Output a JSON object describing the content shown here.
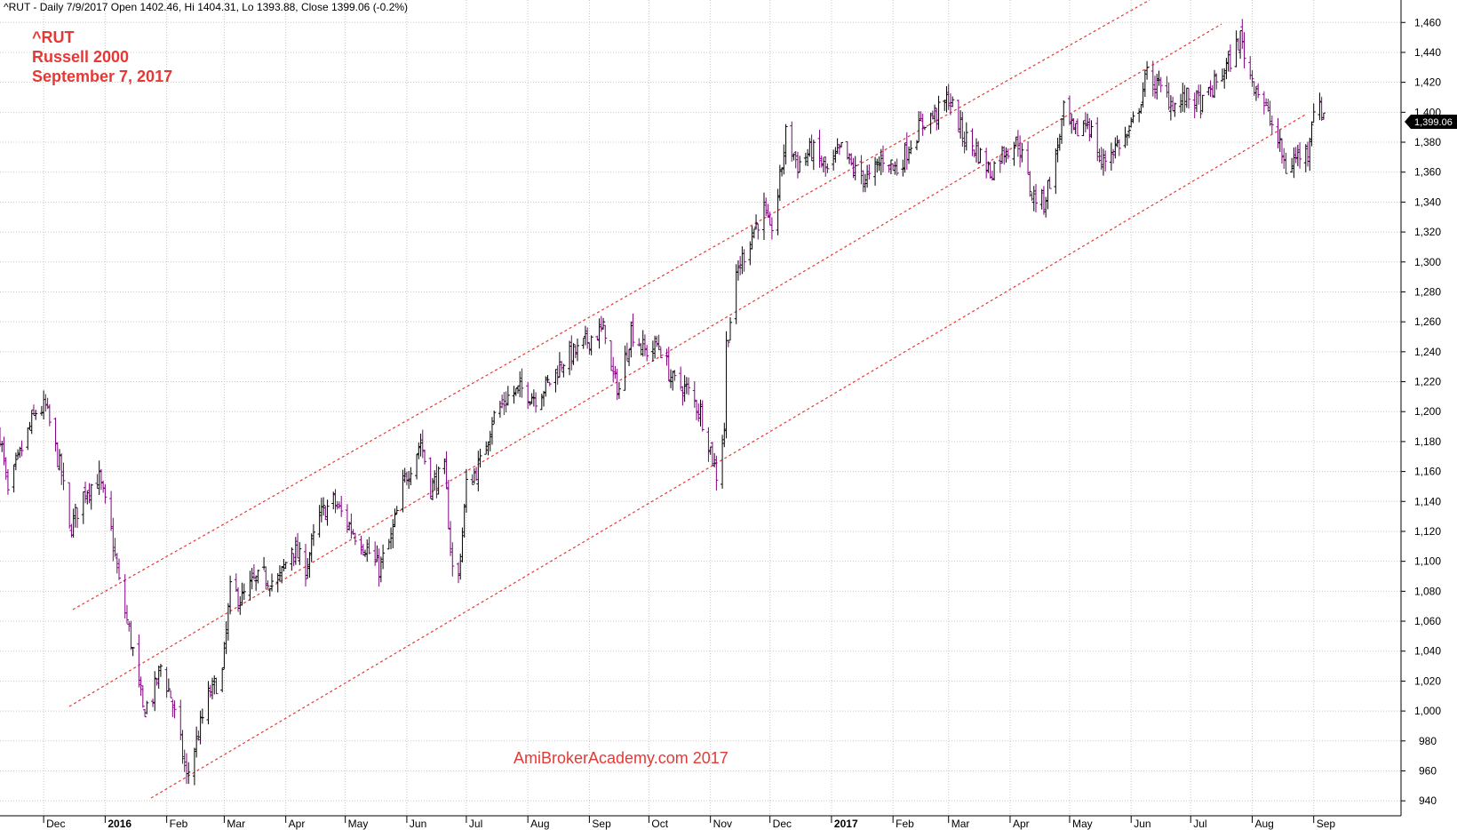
{
  "header": {
    "text": "^RUT - Daily 7/9/2017 Open 1402.46, Hi 1404.31, Lo 1393.88, Close 1399.06 (-0.2%)"
  },
  "annotation": {
    "line1": "^RUT",
    "line2": "Russell 2000",
    "line3": "September 7, 2017"
  },
  "watermark": "AmiBrokerAcademy.com  2017",
  "price_badge": "1,399.06",
  "colors": {
    "up": "#000000",
    "down": "#800080",
    "channel": "#e53935",
    "grid": "#c8c8c8",
    "badge_bg": "#000000",
    "badge_text": "#ffffff"
  },
  "chart_data": {
    "type": "line",
    "y_ticks": [
      940,
      960,
      980,
      1000,
      1020,
      1040,
      1060,
      1080,
      1100,
      1120,
      1140,
      1160,
      1180,
      1200,
      1220,
      1240,
      1260,
      1280,
      1300,
      1320,
      1340,
      1360,
      1380,
      1400,
      1420,
      1440,
      1460
    ],
    "y_tick_labels": [
      "940",
      "960",
      "980",
      "1,000",
      "1,020",
      "1,040",
      "1,060",
      "1,080",
      "1,100",
      "1,120",
      "1,140",
      "1,160",
      "1,180",
      "1,200",
      "1,220",
      "1,240",
      "1,260",
      "1,280",
      "1,300",
      "1,320",
      "1,340",
      "1,360",
      "1,380",
      "1,400",
      "1,420",
      "1,440",
      "1,460"
    ],
    "ylim": [
      930,
      1475
    ],
    "xlim": [
      "2015-11-09",
      "2017-10-15"
    ],
    "x_ticks": [
      {
        "date": "2015-12-01",
        "label": "Dec",
        "bold": false
      },
      {
        "date": "2016-01-01",
        "label": "2016",
        "bold": true
      },
      {
        "date": "2016-02-01",
        "label": "Feb",
        "bold": false
      },
      {
        "date": "2016-03-01",
        "label": "Mar",
        "bold": false
      },
      {
        "date": "2016-04-01",
        "label": "Apr",
        "bold": false
      },
      {
        "date": "2016-05-01",
        "label": "May",
        "bold": false
      },
      {
        "date": "2016-06-01",
        "label": "Jun",
        "bold": false
      },
      {
        "date": "2016-07-01",
        "label": "Jul",
        "bold": false
      },
      {
        "date": "2016-08-01",
        "label": "Aug",
        "bold": false
      },
      {
        "date": "2016-09-01",
        "label": "Sep",
        "bold": false
      },
      {
        "date": "2016-10-01",
        "label": "Oct",
        "bold": false
      },
      {
        "date": "2016-11-01",
        "label": "Nov",
        "bold": false
      },
      {
        "date": "2016-12-01",
        "label": "Dec",
        "bold": false
      },
      {
        "date": "2017-01-01",
        "label": "2017",
        "bold": true
      },
      {
        "date": "2017-02-01",
        "label": "Feb",
        "bold": false
      },
      {
        "date": "2017-03-01",
        "label": "Mar",
        "bold": false
      },
      {
        "date": "2017-04-01",
        "label": "Apr",
        "bold": false
      },
      {
        "date": "2017-05-01",
        "label": "May",
        "bold": false
      },
      {
        "date": "2017-06-01",
        "label": "Jun",
        "bold": false
      },
      {
        "date": "2017-07-01",
        "label": "Jul",
        "bold": false
      },
      {
        "date": "2017-08-01",
        "label": "Aug",
        "bold": false
      },
      {
        "date": "2017-09-01",
        "label": "Sep",
        "bold": false
      }
    ],
    "grid": true,
    "price_series": {
      "name": "^RUT",
      "points": [
        [
          "2015-11-09",
          1185
        ],
        [
          "2015-11-13",
          1145
        ],
        [
          "2015-11-20",
          1175
        ],
        [
          "2015-11-27",
          1200
        ],
        [
          "2015-12-02",
          1203
        ],
        [
          "2015-12-10",
          1158
        ],
        [
          "2015-12-14",
          1120
        ],
        [
          "2015-12-22",
          1148
        ],
        [
          "2015-12-29",
          1155
        ],
        [
          "2016-01-04",
          1120
        ],
        [
          "2016-01-08",
          1085
        ],
        [
          "2016-01-12",
          1060
        ],
        [
          "2016-01-15",
          1040
        ],
        [
          "2016-01-20",
          1000
        ],
        [
          "2016-01-25",
          1010
        ],
        [
          "2016-01-29",
          1030
        ],
        [
          "2016-02-03",
          1010
        ],
        [
          "2016-02-08",
          978
        ],
        [
          "2016-02-11",
          955
        ],
        [
          "2016-02-17",
          985
        ],
        [
          "2016-02-22",
          1010
        ],
        [
          "2016-02-29",
          1025
        ],
        [
          "2016-03-04",
          1080
        ],
        [
          "2016-03-10",
          1075
        ],
        [
          "2016-03-15",
          1085
        ],
        [
          "2016-03-21",
          1090
        ],
        [
          "2016-03-28",
          1085
        ],
        [
          "2016-04-04",
          1110
        ],
        [
          "2016-04-11",
          1095
        ],
        [
          "2016-04-18",
          1130
        ],
        [
          "2016-04-25",
          1140
        ],
        [
          "2016-04-29",
          1132
        ],
        [
          "2016-05-05",
          1120
        ],
        [
          "2016-05-11",
          1110
        ],
        [
          "2016-05-18",
          1095
        ],
        [
          "2016-05-24",
          1115
        ],
        [
          "2016-05-31",
          1155
        ],
        [
          "2016-06-08",
          1180
        ],
        [
          "2016-06-13",
          1150
        ],
        [
          "2016-06-20",
          1160
        ],
        [
          "2016-06-24",
          1095
        ],
        [
          "2016-06-27",
          1090
        ],
        [
          "2016-07-01",
          1150
        ],
        [
          "2016-07-08",
          1165
        ],
        [
          "2016-07-14",
          1195
        ],
        [
          "2016-07-22",
          1210
        ],
        [
          "2016-07-29",
          1215
        ],
        [
          "2016-08-05",
          1210
        ],
        [
          "2016-08-12",
          1220
        ],
        [
          "2016-08-19",
          1235
        ],
        [
          "2016-08-26",
          1240
        ],
        [
          "2016-09-02",
          1250
        ],
        [
          "2016-09-09",
          1255
        ],
        [
          "2016-09-12",
          1225
        ],
        [
          "2016-09-16",
          1215
        ],
        [
          "2016-09-22",
          1255
        ],
        [
          "2016-09-29",
          1240
        ],
        [
          "2016-10-06",
          1245
        ],
        [
          "2016-10-13",
          1220
        ],
        [
          "2016-10-20",
          1215
        ],
        [
          "2016-10-27",
          1200
        ],
        [
          "2016-11-01",
          1175
        ],
        [
          "2016-11-04",
          1158
        ],
        [
          "2016-11-08",
          1190
        ],
        [
          "2016-11-09",
          1245
        ],
        [
          "2016-11-15",
          1295
        ],
        [
          "2016-11-22",
          1320
        ],
        [
          "2016-11-28",
          1335
        ],
        [
          "2016-12-01",
          1318
        ],
        [
          "2016-12-05",
          1345
        ],
        [
          "2016-12-09",
          1385
        ],
        [
          "2016-12-15",
          1365
        ],
        [
          "2016-12-22",
          1375
        ],
        [
          "2016-12-30",
          1360
        ],
        [
          "2017-01-06",
          1375
        ],
        [
          "2017-01-13",
          1360
        ],
        [
          "2017-01-20",
          1355
        ],
        [
          "2017-01-27",
          1370
        ],
        [
          "2017-02-03",
          1362
        ],
        [
          "2017-02-10",
          1380
        ],
        [
          "2017-02-17",
          1395
        ],
        [
          "2017-02-24",
          1400
        ],
        [
          "2017-03-01",
          1410
        ],
        [
          "2017-03-08",
          1385
        ],
        [
          "2017-03-15",
          1375
        ],
        [
          "2017-03-22",
          1360
        ],
        [
          "2017-03-29",
          1375
        ],
        [
          "2017-04-05",
          1380
        ],
        [
          "2017-04-12",
          1345
        ],
        [
          "2017-04-18",
          1340
        ],
        [
          "2017-04-24",
          1370
        ],
        [
          "2017-04-28",
          1400
        ],
        [
          "2017-05-03",
          1385
        ],
        [
          "2017-05-10",
          1395
        ],
        [
          "2017-05-17",
          1365
        ],
        [
          "2017-05-22",
          1375
        ],
        [
          "2017-05-31",
          1385
        ],
        [
          "2017-06-05",
          1405
        ],
        [
          "2017-06-09",
          1425
        ],
        [
          "2017-06-16",
          1415
        ],
        [
          "2017-06-23",
          1405
        ],
        [
          "2017-06-30",
          1410
        ],
        [
          "2017-07-07",
          1405
        ],
        [
          "2017-07-14",
          1420
        ],
        [
          "2017-07-21",
          1435
        ],
        [
          "2017-07-26",
          1450
        ],
        [
          "2017-07-31",
          1425
        ],
        [
          "2017-08-04",
          1415
        ],
        [
          "2017-08-10",
          1395
        ],
        [
          "2017-08-14",
          1380
        ],
        [
          "2017-08-18",
          1362
        ],
        [
          "2017-08-23",
          1370
        ],
        [
          "2017-08-29",
          1375
        ],
        [
          "2017-09-01",
          1405
        ],
        [
          "2017-09-05",
          1400
        ],
        [
          "2017-09-07",
          1399
        ]
      ]
    }
  }
}
